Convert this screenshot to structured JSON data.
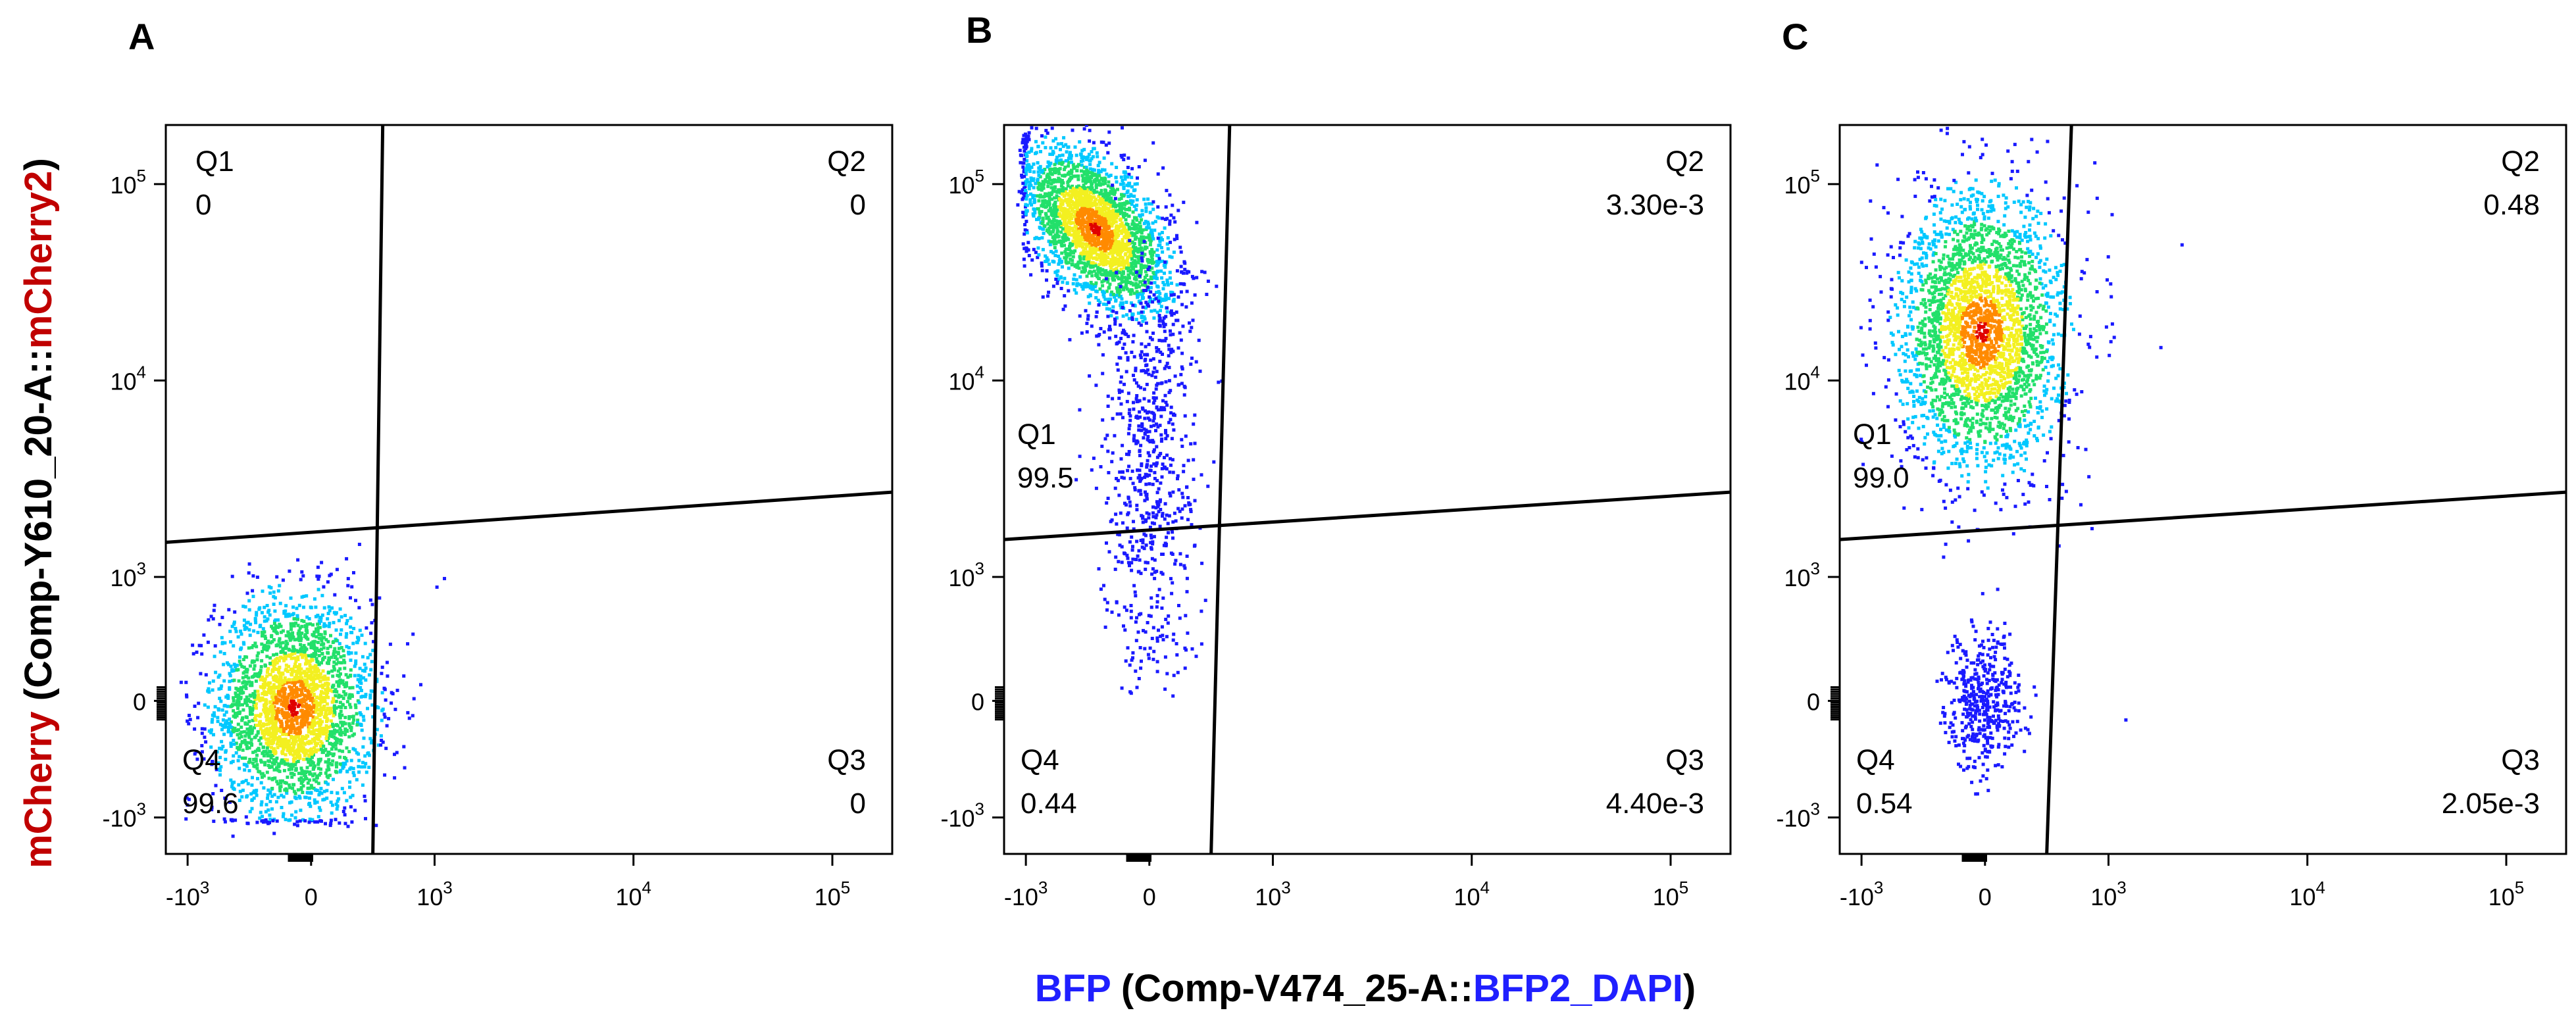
{
  "figure": {
    "y_axis_title": {
      "colored": "mCherry",
      "plain_open": " (Comp-Y610_20-A::",
      "colored2": "mCherry2",
      "plain_close": ")"
    },
    "x_axis_title": {
      "colored": "BFP",
      "plain_open": " (Comp-V474_25-A::",
      "colored2": "BFP2_DAPI",
      "plain_close": ")"
    },
    "colors": {
      "red_label": "#c00000",
      "blue_label": "#1f1fff",
      "black": "#000000"
    }
  },
  "chart_data": [
    {
      "type": "scatter",
      "panel": "A",
      "x_ticks": [
        {
          "label": "-10",
          "exp": "3",
          "value": -1000
        },
        {
          "label": "0",
          "exp": "",
          "value": 0
        },
        {
          "label": "10",
          "exp": "3",
          "value": 1000
        },
        {
          "label": "10",
          "exp": "4",
          "value": 10000
        },
        {
          "label": "10",
          "exp": "5",
          "value": 100000
        }
      ],
      "y_ticks": [
        {
          "label": "-10",
          "exp": "3",
          "value": -1000
        },
        {
          "label": "0",
          "exp": "",
          "value": 0
        },
        {
          "label": "10",
          "exp": "3",
          "value": 1000
        },
        {
          "label": "10",
          "exp": "4",
          "value": 10000
        },
        {
          "label": "10",
          "exp": "5",
          "value": 100000
        }
      ],
      "quadrants": [
        {
          "name": "Q1",
          "value": "0",
          "corner": "top-left"
        },
        {
          "name": "Q2",
          "value": "0",
          "corner": "top-right"
        },
        {
          "name": "Q3",
          "value": "0",
          "corner": "bottom-right"
        },
        {
          "name": "Q4",
          "value": "99.6",
          "corner": "bottom-left"
        }
      ],
      "gate": {
        "x_at_bottom": 500,
        "x_at_top": 580,
        "y_at_left": 1500,
        "y_at_right": 2700
      },
      "populations": [
        {
          "x_center": -150,
          "y_center": -50,
          "x_spread": 320,
          "y_spread": 450,
          "count": 2600,
          "tilt": 0
        }
      ],
      "outliers": [
        {
          "x": 1100,
          "y": 1000
        }
      ]
    },
    {
      "type": "scatter",
      "panel": "B",
      "x_ticks": [
        {
          "label": "-10",
          "exp": "3",
          "value": -1000
        },
        {
          "label": "0",
          "exp": "",
          "value": 0
        },
        {
          "label": "10",
          "exp": "3",
          "value": 1000
        },
        {
          "label": "10",
          "exp": "4",
          "value": 10000
        },
        {
          "label": "10",
          "exp": "5",
          "value": 100000
        }
      ],
      "y_ticks": [
        {
          "label": "10",
          "exp": "5",
          "value": 100000
        },
        {
          "label": "10",
          "exp": "4",
          "value": 10000
        },
        {
          "label": "10",
          "exp": "3",
          "value": 1000
        },
        {
          "label": "0",
          "exp": "",
          "value": 0
        },
        {
          "label": "-10",
          "exp": "3",
          "value": -1000
        }
      ],
      "quadrants": [
        {
          "name": "Q1",
          "value": "99.5",
          "corner": "mid-left"
        },
        {
          "name": "Q2",
          "value": "3.30e-3",
          "corner": "top-right"
        },
        {
          "name": "Q3",
          "value": "4.40e-3",
          "corner": "bottom-right"
        },
        {
          "name": "Q4",
          "value": "0.44",
          "corner": "bottom-left"
        }
      ],
      "gate": {
        "x_at_bottom": 500,
        "x_at_top": 650,
        "y_at_left": 1550,
        "y_at_right": 2700
      },
      "populations": [
        {
          "x_center": -450,
          "y_center": 60000,
          "x_spread": 300,
          "y_spread": 0.18,
          "count": 2600,
          "tilt": -0.6
        },
        {
          "x_center": -20,
          "y_center": 4000,
          "x_spread": 200,
          "y_spread": 0.55,
          "count": 700,
          "tilt": 0
        }
      ],
      "outliers": []
    },
    {
      "type": "scatter",
      "panel": "C",
      "x_ticks": [
        {
          "label": "-10",
          "exp": "3",
          "value": -1000
        },
        {
          "label": "0",
          "exp": "",
          "value": 0
        },
        {
          "label": "10",
          "exp": "3",
          "value": 1000
        },
        {
          "label": "10",
          "exp": "4",
          "value": 10000
        },
        {
          "label": "10",
          "exp": "5",
          "value": 100000
        }
      ],
      "y_ticks": [
        {
          "label": "10",
          "exp": "5",
          "value": 100000
        },
        {
          "label": "10",
          "exp": "4",
          "value": 10000
        },
        {
          "label": "10",
          "exp": "3",
          "value": 1000
        },
        {
          "label": "0",
          "exp": "",
          "value": 0
        },
        {
          "label": "-10",
          "exp": "3",
          "value": -1000
        }
      ],
      "quadrants": [
        {
          "name": "Q1",
          "value": "99.0",
          "corner": "mid-left"
        },
        {
          "name": "Q2",
          "value": "0.48",
          "corner": "top-right"
        },
        {
          "name": "Q3",
          "value": "2.05e-3",
          "corner": "bottom-right"
        },
        {
          "name": "Q4",
          "value": "0.54",
          "corner": "bottom-left"
        }
      ],
      "gate": {
        "x_at_bottom": 500,
        "x_at_top": 700,
        "y_at_left": 1550,
        "y_at_right": 2700
      },
      "populations": [
        {
          "x_center": -40,
          "y_center": 18000,
          "x_spread": 330,
          "y_spread": 0.35,
          "count": 2800,
          "tilt": 0
        },
        {
          "x_center": -30,
          "y_center": 0,
          "x_spread": 150,
          "y_spread": 0,
          "count": 450,
          "tilt": 0
        }
      ],
      "outliers": [
        {
          "x": 1800,
          "y": 15000
        },
        {
          "x": 2300,
          "y": 50000
        },
        {
          "x": 1200,
          "y": -150
        }
      ]
    }
  ]
}
